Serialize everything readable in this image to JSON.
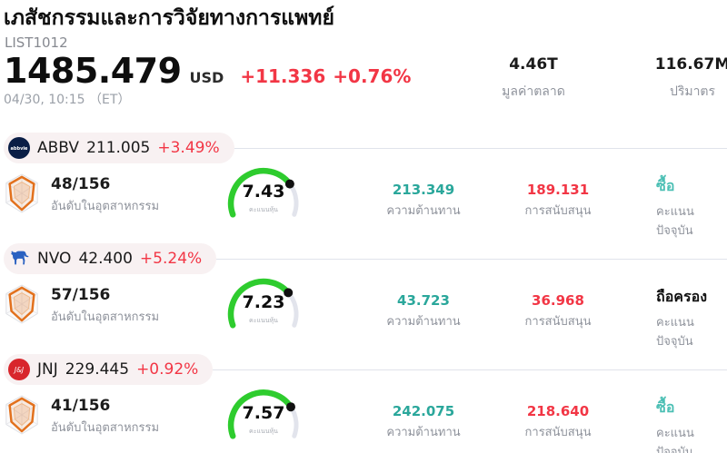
{
  "header": {
    "title": "เภสัชกรรมและการวิจัยทางการแพทย์",
    "symbol": "LIST1012",
    "price": "1485.479",
    "currency": "USD",
    "change_abs": "+11.336",
    "change_pct": "+0.76%",
    "datetime": "04/30, 10:15 （ET）",
    "stats": [
      {
        "value": "4.46T",
        "label": "มูลค่าตลาด"
      },
      {
        "value": "116.67M",
        "label": "ปริมาตร"
      }
    ]
  },
  "labels": {
    "rank": "อันดับในอุตสาหกรรม",
    "gauge": "คะแนนหุ้น",
    "resistance": "ความต้านทาน",
    "support": "การสนับสนุน",
    "signal": "คะแนนปัจจุบัน"
  },
  "colors": {
    "up": "#f23645",
    "teal": "#2aa79b",
    "buy": "#4bbfb4",
    "gauge_green": "#2ecc2e",
    "gauge_track": "#e2e4ec",
    "divider": "#e0e3eb",
    "pill_bg": "#f8f1f2"
  },
  "stocks": [
    {
      "ticker": "ABBV",
      "price": "211.005",
      "change": "+3.49%",
      "logo": "abbvie-logo-icon",
      "rank": "48/156",
      "score": "7.43",
      "resistance": "213.349",
      "support": "189.131",
      "signal": "ซื้อ",
      "signal_type": "buy"
    },
    {
      "ticker": "NVO",
      "price": "42.400",
      "change": "+5.24%",
      "logo": "novo-nordisk-bull-icon",
      "rank": "57/156",
      "score": "7.23",
      "resistance": "43.723",
      "support": "36.968",
      "signal": "ถือครอง",
      "signal_type": "hold"
    },
    {
      "ticker": "JNJ",
      "price": "229.445",
      "change": "+0.92%",
      "logo": "jnj-logo-icon",
      "rank": "41/156",
      "score": "7.57",
      "resistance": "242.075",
      "support": "218.640",
      "signal": "ซื้อ",
      "signal_type": "buy"
    }
  ]
}
